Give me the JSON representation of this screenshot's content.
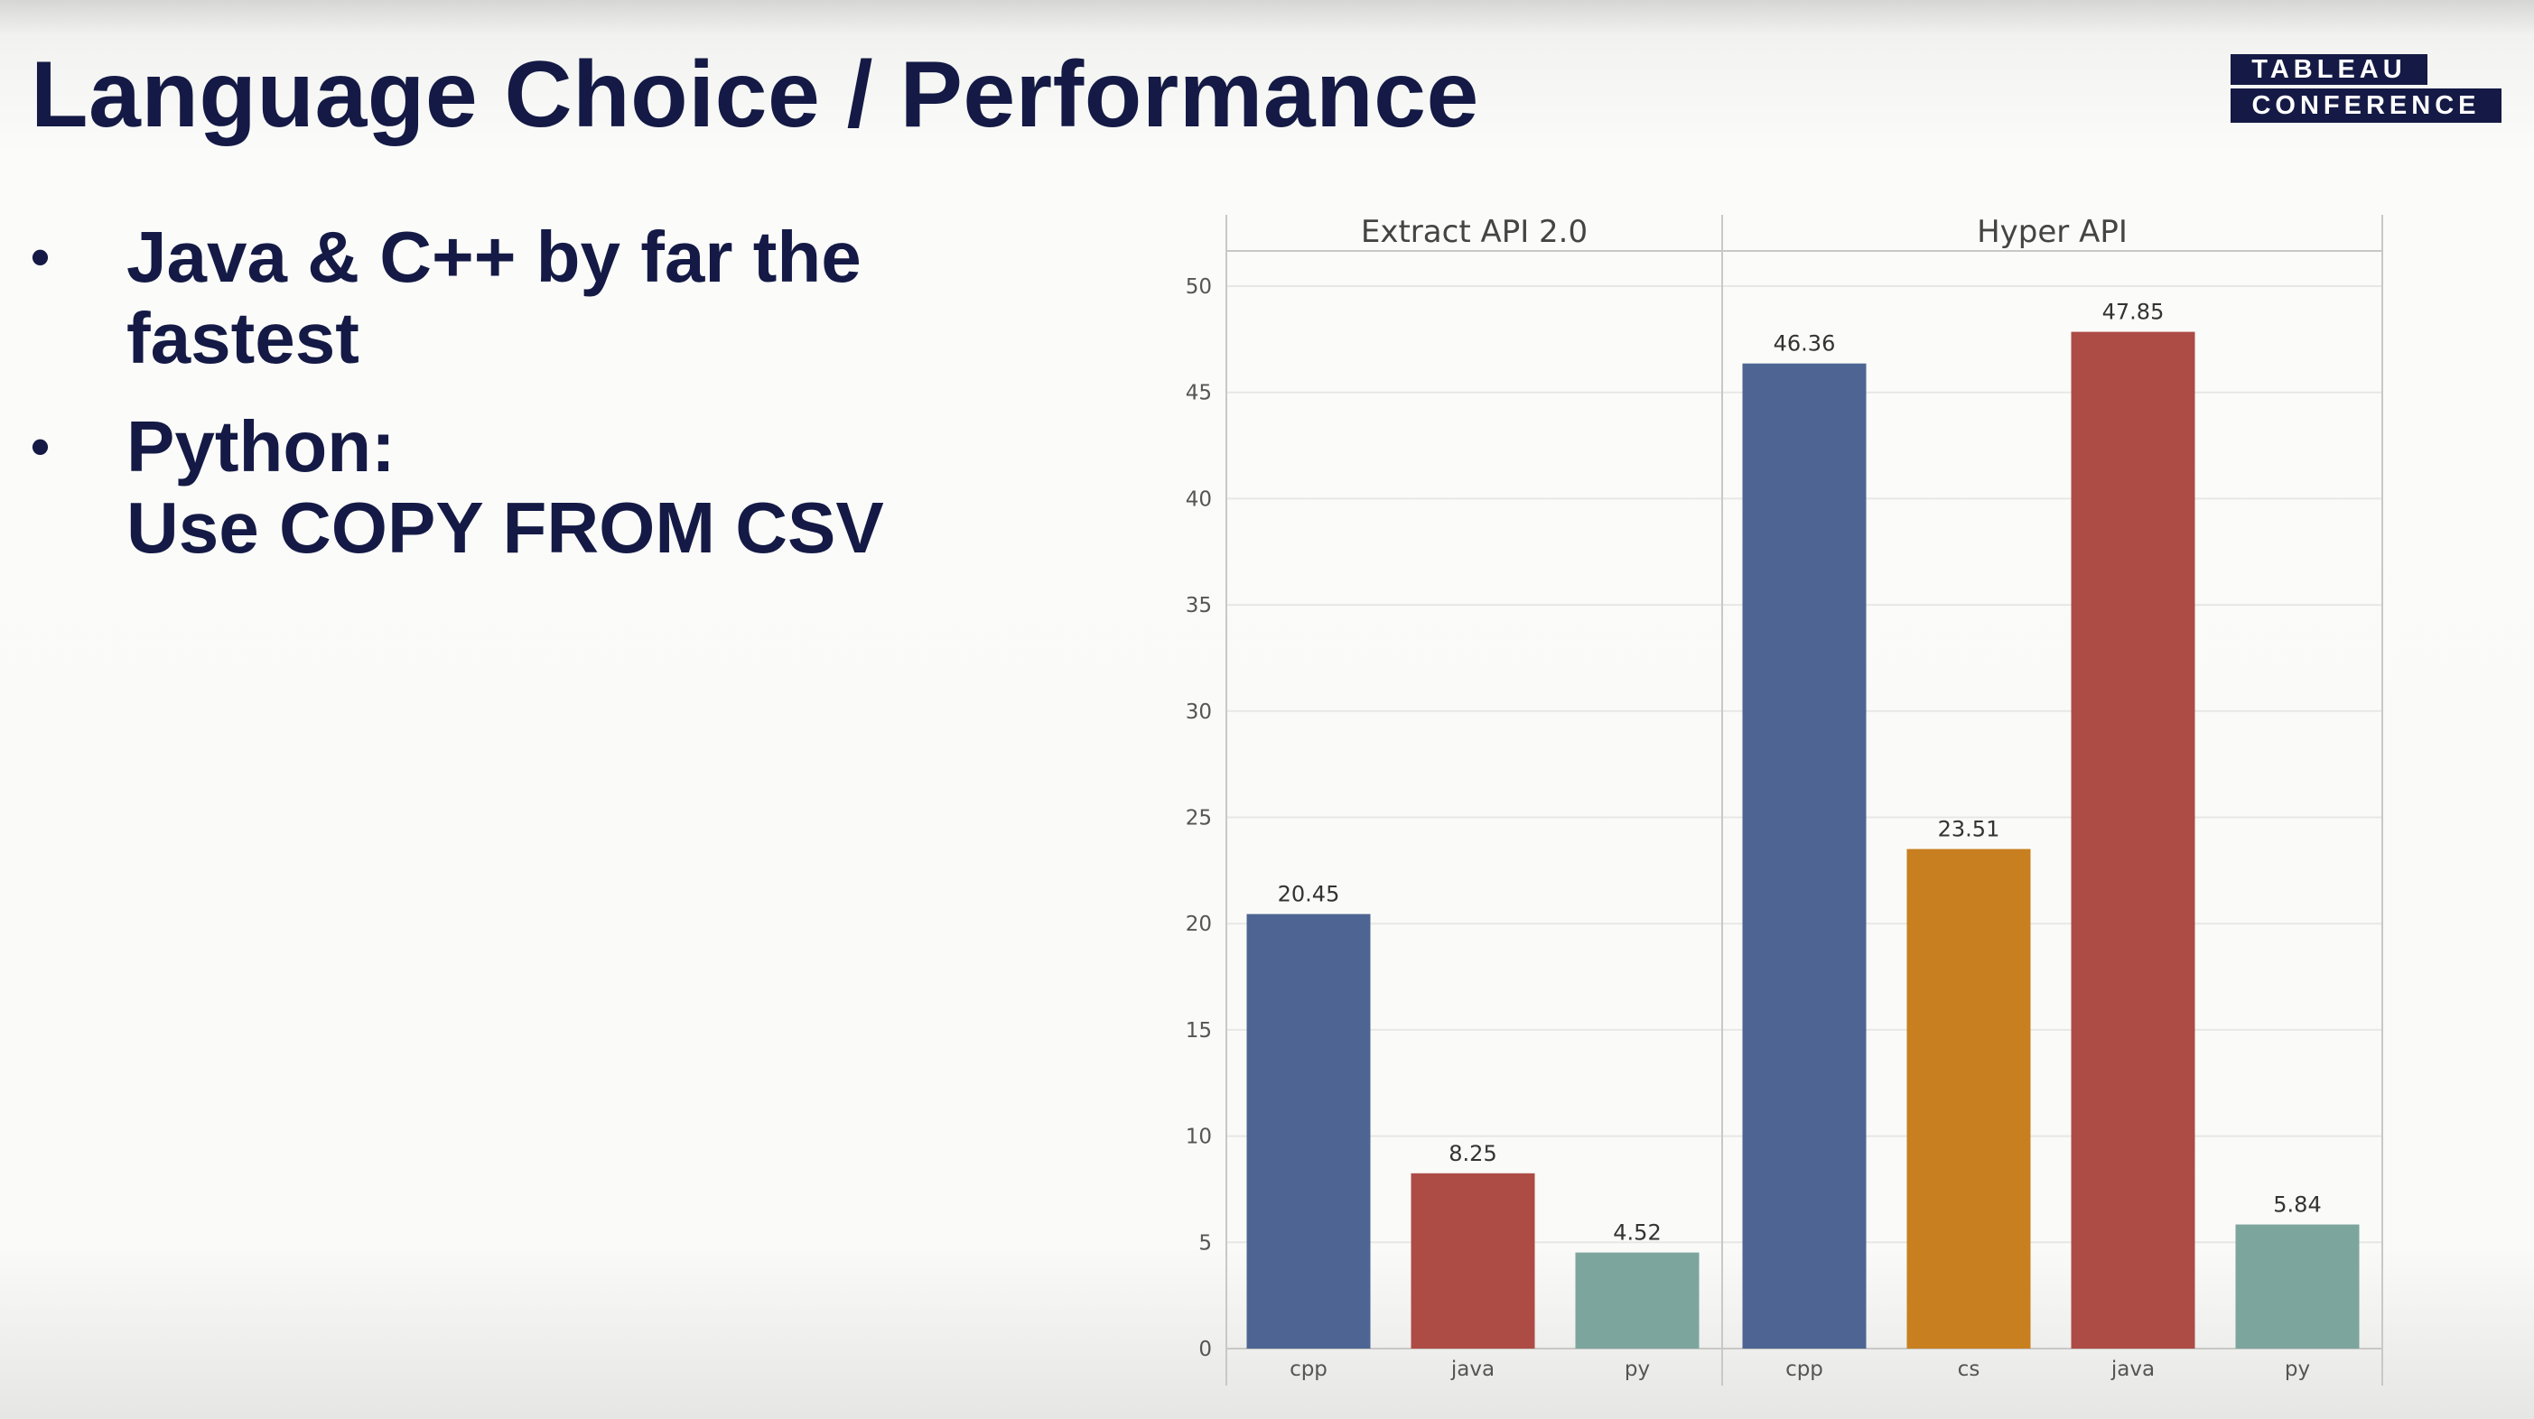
{
  "slide": {
    "title": "Language Choice / Performance",
    "bullets": [
      {
        "lines": [
          "Java & C++ by far the",
          "fastest"
        ]
      },
      {
        "lines": [
          "Python:",
          "Use COPY FROM CSV"
        ]
      }
    ],
    "bullet_symbol": "•"
  },
  "logo": {
    "line1": "TABLEAU",
    "line2": "CONFERENCE"
  },
  "chart_data": {
    "type": "bar",
    "title": "",
    "xlabel": "",
    "ylabel": "",
    "ylim": [
      0,
      50
    ],
    "yticks": [
      0,
      5,
      10,
      15,
      20,
      25,
      30,
      35,
      40,
      45,
      50
    ],
    "grid": true,
    "panels": [
      {
        "name": "Extract API 2.0",
        "categories": [
          "cpp",
          "java",
          "py"
        ],
        "values": [
          20.45,
          8.25,
          4.52
        ],
        "labels": [
          "20.45",
          "8.25",
          "4.52"
        ]
      },
      {
        "name": "Hyper API",
        "categories": [
          "cpp",
          "cs",
          "java",
          "py"
        ],
        "values": [
          46.36,
          23.51,
          47.85,
          5.84
        ],
        "labels": [
          "46.36",
          "23.51",
          "47.85",
          "5.84"
        ]
      }
    ],
    "colors": {
      "cpp": "#4e6593",
      "java": "#ad4b45",
      "py": "#7ca59d",
      "cs": "#c87f1f"
    }
  }
}
